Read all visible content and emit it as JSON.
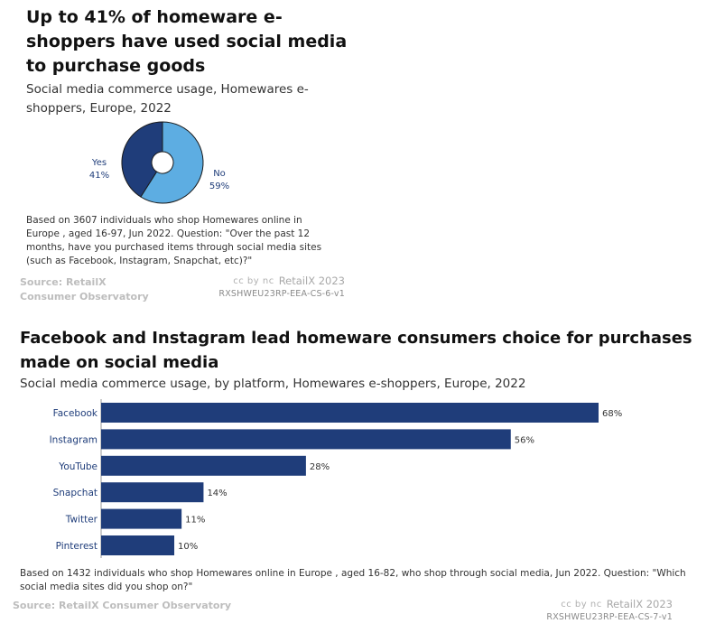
{
  "chart1": {
    "title": "Up to 41% of homeware e-shoppers have used social media to purchase goods",
    "subtitle": "Social media commerce usage, Homewares e-shoppers, Europe, 2022",
    "note": "Based on 3607 individuals who shop Homewares online in Europe , aged 16-97, Jun 2022. Question: \"Over the past 12 months, have you purchased items through social media sites (such as Facebook, Instagram, Snapchat, etc)?\"",
    "source": "Source: RetailX Consumer Observatory",
    "license_icons": "cc by nc",
    "brand": "RetailX 2023",
    "code": "RXSHWEU23RP-EEA-CS-6-v1"
  },
  "chart2": {
    "title": "Facebook and Instagram lead homeware consumers choice for purchases made on social media",
    "subtitle": "Social media commerce usage, by platform, Homewares e-shoppers, Europe, 2022",
    "note": "Based on 1432 individuals who shop Homewares online in Europe , aged 16-82, who shop through social media, Jun 2022. Question: \"Which social media sites did you shop on?\"",
    "source": "Source: RetailX Consumer Observatory",
    "license_icons": "cc by nc",
    "brand": "RetailX 2023",
    "code": "RXSHWEU23RP-EEA-CS-7-v1"
  },
  "colors": {
    "dark_blue": "#1f3d7a",
    "light_blue": "#5dade2"
  },
  "chart_data": [
    {
      "type": "pie",
      "title": "Up to 41% of homeware e-shoppers have used social media to purchase goods",
      "categories": [
        "Yes",
        "No"
      ],
      "values": [
        41,
        59
      ],
      "labels": [
        "41%",
        "59%"
      ]
    },
    {
      "type": "bar",
      "orientation": "horizontal",
      "title": "Facebook and Instagram lead homeware consumers choice for purchases made on social media",
      "categories": [
        "Facebook",
        "Instagram",
        "YouTube",
        "Snapchat",
        "Twitter",
        "Pinterest"
      ],
      "values": [
        68,
        56,
        28,
        14,
        11,
        10
      ],
      "labels": [
        "68%",
        "56%",
        "28%",
        "14%",
        "11%",
        "10%"
      ],
      "xlim": [
        0,
        100
      ]
    }
  ]
}
